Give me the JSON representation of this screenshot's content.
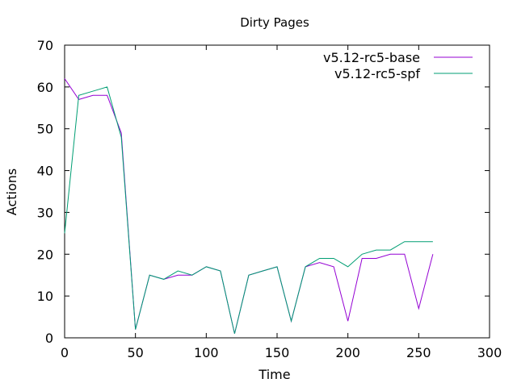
{
  "chart_data": {
    "type": "line",
    "title": "Dirty Pages",
    "xlabel": "Time",
    "ylabel": "Actions",
    "xlim": [
      0,
      300
    ],
    "ylim": [
      0,
      70
    ],
    "xticks": [
      0,
      50,
      100,
      150,
      200,
      250,
      300
    ],
    "yticks": [
      0,
      10,
      20,
      30,
      40,
      50,
      60,
      70
    ],
    "xtick_labels": [
      "0",
      "50",
      "100",
      "150",
      "200",
      "250",
      "300"
    ],
    "ytick_labels": [
      "0",
      "10",
      "20",
      "30",
      "40",
      "50",
      "60",
      "70"
    ],
    "legend_position": "top-right",
    "grid": false,
    "x": [
      0,
      10,
      20,
      30,
      40,
      50,
      60,
      70,
      80,
      90,
      100,
      110,
      120,
      130,
      140,
      150,
      160,
      170,
      180,
      190,
      200,
      210,
      220,
      230,
      240,
      250,
      260
    ],
    "series": [
      {
        "name": "v5.12-rc5-base",
        "color": "#9400d3",
        "values": [
          62,
          57,
          58,
          58,
          49,
          2,
          15,
          14,
          15,
          15,
          17,
          16,
          1,
          15,
          16,
          17,
          4,
          17,
          18,
          17,
          4,
          19,
          19,
          20,
          20,
          7,
          20
        ]
      },
      {
        "name": "v5.12-rc5-spf",
        "color": "#009e73",
        "values": [
          25,
          58,
          59,
          60,
          48,
          2,
          15,
          14,
          16,
          15,
          17,
          16,
          1,
          15,
          16,
          17,
          4,
          17,
          19,
          19,
          17,
          20,
          21,
          21,
          23,
          23,
          23
        ]
      }
    ]
  }
}
